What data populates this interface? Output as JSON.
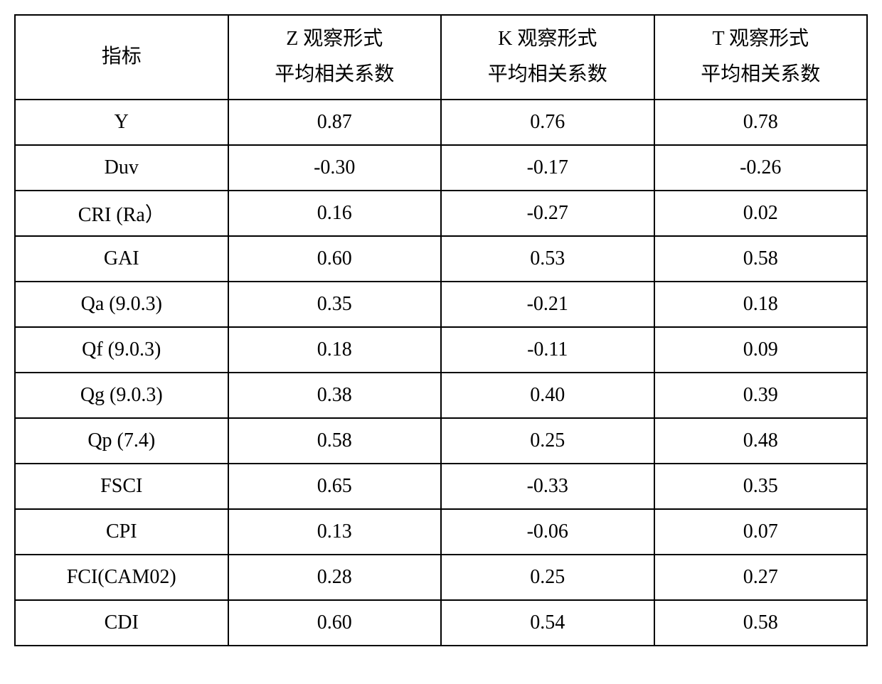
{
  "table": {
    "type": "table",
    "background_color": "#ffffff",
    "border_color": "#000000",
    "border_width": 2,
    "font_family": "Times New Roman, SimSun, serif",
    "font_size": 28,
    "text_color": "#000000",
    "header_row_height": 110,
    "data_row_height": 64,
    "column_widths": [
      "25%",
      "25%",
      "25%",
      "25%"
    ],
    "text_align": "center",
    "columns": [
      {
        "key": "indicator",
        "label_line1": "指标",
        "label_line2": ""
      },
      {
        "key": "z",
        "label_line1": "Z 观察形式",
        "label_line2": "平均相关系数"
      },
      {
        "key": "k",
        "label_line1": "K 观察形式",
        "label_line2": "平均相关系数"
      },
      {
        "key": "t",
        "label_line1": "T 观察形式",
        "label_line2": "平均相关系数"
      }
    ],
    "rows": [
      {
        "indicator": "Y",
        "z": "0.87",
        "k": "0.76",
        "t": "0.78"
      },
      {
        "indicator": "Duv",
        "z": "-0.30",
        "k": "-0.17",
        "t": "-0.26"
      },
      {
        "indicator": "CRI (Ra）",
        "z": "0.16",
        "k": "-0.27",
        "t": "0.02"
      },
      {
        "indicator": "GAI",
        "z": "0.60",
        "k": "0.53",
        "t": "0.58"
      },
      {
        "indicator": "Qa (9.0.3)",
        "z": "0.35",
        "k": "-0.21",
        "t": "0.18"
      },
      {
        "indicator": "Qf (9.0.3)",
        "z": "0.18",
        "k": "-0.11",
        "t": "0.09"
      },
      {
        "indicator": "Qg (9.0.3)",
        "z": "0.38",
        "k": "0.40",
        "t": "0.39"
      },
      {
        "indicator": "Qp (7.4)",
        "z": "0.58",
        "k": "0.25",
        "t": "0.48"
      },
      {
        "indicator": "FSCI",
        "z": "0.65",
        "k": "-0.33",
        "t": "0.35"
      },
      {
        "indicator": "CPI",
        "z": "0.13",
        "k": "-0.06",
        "t": "0.07"
      },
      {
        "indicator": "FCI(CAM02)",
        "z": "0.28",
        "k": "0.25",
        "t": "0.27"
      },
      {
        "indicator": "CDI",
        "z": "0.60",
        "k": "0.54",
        "t": "0.58"
      }
    ]
  }
}
